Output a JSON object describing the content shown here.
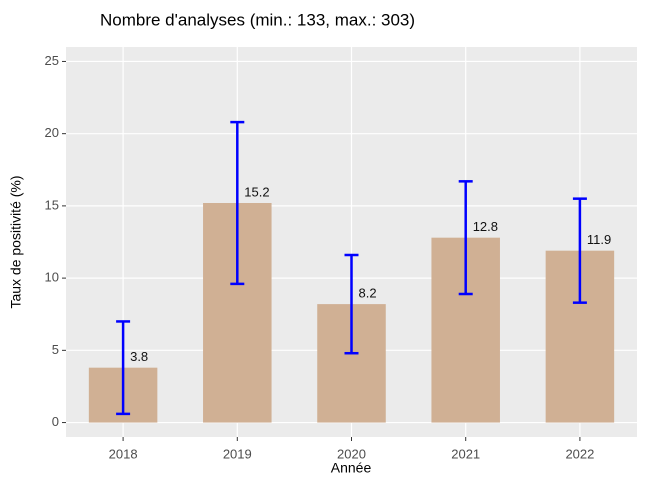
{
  "chart_data": {
    "type": "bar",
    "title": "Nombre d'analyses (min.: 133, max.: 303)",
    "x_label": "Année",
    "y_label": "Taux de positivité (%)",
    "categories": [
      "2018",
      "2019",
      "2020",
      "2021",
      "2022"
    ],
    "values": [
      3.8,
      15.2,
      8.2,
      12.8,
      11.9
    ],
    "ci_low": [
      0.6,
      9.6,
      4.8,
      8.9,
      8.3
    ],
    "ci_high": [
      7.0,
      20.8,
      11.6,
      16.7,
      15.5
    ],
    "color": "#d0b094",
    "error_color": "#0000ff",
    "ylim": [
      -1.0,
      26.0
    ],
    "yticks": [
      0,
      5,
      10,
      15,
      20,
      25
    ],
    "grid": true
  }
}
